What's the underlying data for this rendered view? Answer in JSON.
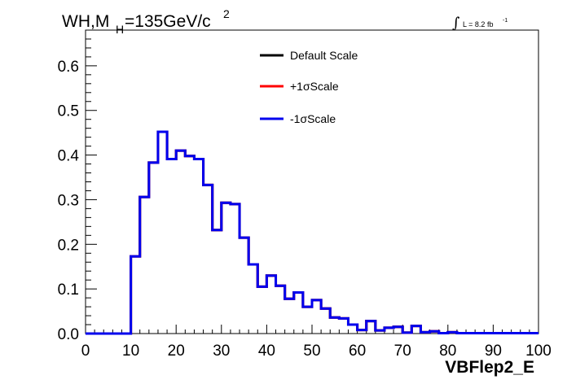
{
  "title": {
    "main": "WH,M",
    "sub": "H",
    "rest": "=135GeV/c",
    "sup": "2"
  },
  "luminosity": {
    "symbol": "∫",
    "text": "L = 8.2 fb",
    "sup": "-1"
  },
  "chart_data": {
    "type": "line",
    "xlabel": "VBFlep2_E",
    "ylabel": "",
    "xlim": [
      0,
      100
    ],
    "ylim": [
      0,
      0.68
    ],
    "x_ticks": [
      0,
      10,
      20,
      30,
      40,
      50,
      60,
      70,
      80,
      90,
      100
    ],
    "y_ticks": [
      0.0,
      0.1,
      0.2,
      0.3,
      0.4,
      0.5,
      0.6
    ],
    "x_tick_labels": [
      "0",
      "10",
      "20",
      "30",
      "40",
      "50",
      "60",
      "70",
      "80",
      "90",
      "100"
    ],
    "y_tick_labels": [
      "0.0",
      "0.1",
      "0.2",
      "0.3",
      "0.4",
      "0.5",
      "0.6"
    ],
    "bin_width": 2,
    "bin_edges_start": 0,
    "legend_position": "top-center",
    "series": [
      {
        "name": "Default Scale",
        "color": "#000000",
        "values": [
          0,
          0,
          0,
          0,
          0,
          0.173,
          0.306,
          0.383,
          0.452,
          0.391,
          0.41,
          0.398,
          0.391,
          0.333,
          0.232,
          0.293,
          0.29,
          0.215,
          0.155,
          0.105,
          0.13,
          0.107,
          0.078,
          0.092,
          0.06,
          0.075,
          0.056,
          0.036,
          0.034,
          0.02,
          0.008,
          0.028,
          0.007,
          0.013,
          0.015,
          0.002,
          0.017,
          0.003,
          0.005,
          0.001,
          0.003,
          0.001,
          0.001,
          0.001,
          0.001,
          0.001,
          0.001,
          0.001,
          0.001,
          0.001
        ]
      },
      {
        "name": "+1σScale",
        "color": "#ff0000",
        "values": [
          0,
          0,
          0,
          0,
          0,
          0.173,
          0.306,
          0.383,
          0.452,
          0.391,
          0.41,
          0.398,
          0.391,
          0.333,
          0.232,
          0.293,
          0.29,
          0.215,
          0.155,
          0.105,
          0.13,
          0.107,
          0.078,
          0.092,
          0.06,
          0.075,
          0.056,
          0.036,
          0.034,
          0.02,
          0.008,
          0.028,
          0.007,
          0.013,
          0.015,
          0.002,
          0.017,
          0.003,
          0.005,
          0.001,
          0.003,
          0.001,
          0.001,
          0.001,
          0.001,
          0.001,
          0.001,
          0.001,
          0.001,
          0.001
        ]
      },
      {
        "name": "-1σScale",
        "color": "#0000ee",
        "values": [
          0,
          0,
          0,
          0,
          0,
          0.173,
          0.306,
          0.383,
          0.452,
          0.391,
          0.41,
          0.398,
          0.391,
          0.333,
          0.232,
          0.293,
          0.29,
          0.215,
          0.155,
          0.105,
          0.13,
          0.107,
          0.078,
          0.092,
          0.06,
          0.075,
          0.056,
          0.036,
          0.034,
          0.02,
          0.008,
          0.028,
          0.007,
          0.013,
          0.015,
          0.002,
          0.017,
          0.003,
          0.005,
          0.001,
          0.003,
          0.001,
          0.001,
          0.001,
          0.001,
          0.001,
          0.001,
          0.001,
          0.001,
          0.001
        ]
      }
    ]
  }
}
